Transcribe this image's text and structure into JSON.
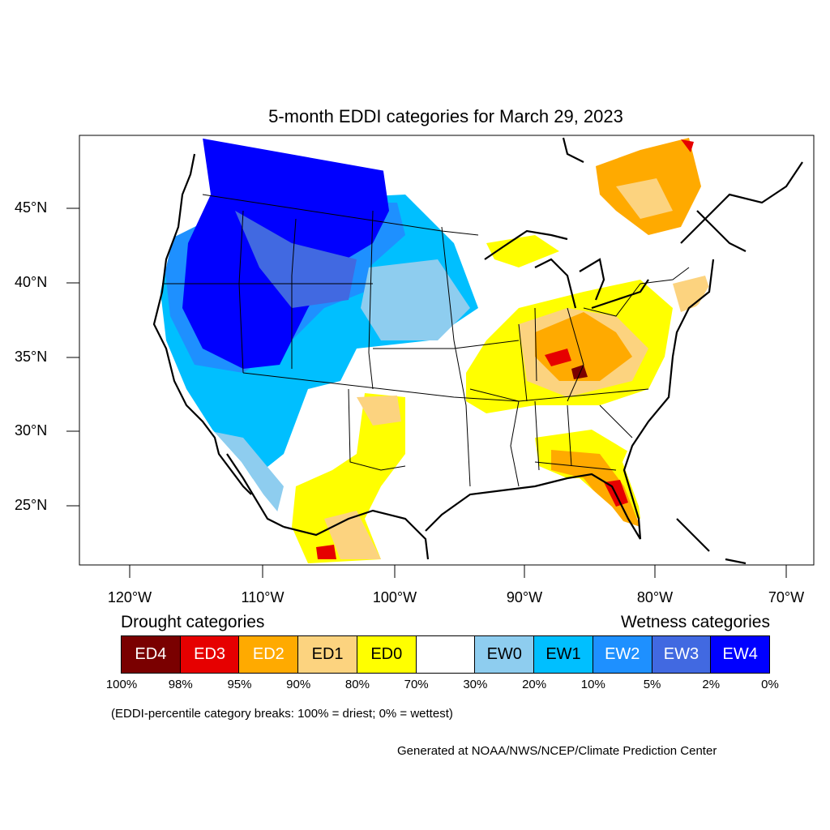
{
  "title": "5-month EDDI categories for March 29, 2023",
  "latitude_labels": [
    "45°N",
    "40°N",
    "35°N",
    "30°N",
    "25°N"
  ],
  "longitude_labels": [
    "120°W",
    "110°W",
    "100°W",
    "90°W",
    "80°W",
    "70°W"
  ],
  "legend": {
    "drought_heading": "Drought categories",
    "wetness_heading": "Wetness categories",
    "categories": [
      {
        "label": "ED4",
        "color": "#7a0000",
        "text_color": "#ffffff"
      },
      {
        "label": "ED3",
        "color": "#e60000",
        "text_color": "#ffffff"
      },
      {
        "label": "ED2",
        "color": "#ffaa00",
        "text_color": "#ffffff"
      },
      {
        "label": "ED1",
        "color": "#fcd37f",
        "text_color": "#000000"
      },
      {
        "label": "ED0",
        "color": "#ffff00",
        "text_color": "#000000"
      },
      {
        "label": "",
        "color": "#ffffff",
        "text_color": "#000000"
      },
      {
        "label": "EW0",
        "color": "#8ecdef",
        "text_color": "#000000"
      },
      {
        "label": "EW1",
        "color": "#00bfff",
        "text_color": "#000000"
      },
      {
        "label": "EW2",
        "color": "#1e90ff",
        "text_color": "#ffffff"
      },
      {
        "label": "EW3",
        "color": "#4169e1",
        "text_color": "#ffffff"
      },
      {
        "label": "EW4",
        "color": "#0000ff",
        "text_color": "#ffffff"
      }
    ],
    "percentiles": [
      "100%",
      "98%",
      "95%",
      "90%",
      "80%",
      "70%",
      "30%",
      "20%",
      "10%",
      "5%",
      "2%",
      "0%"
    ]
  },
  "note": "(EDDI-percentile category breaks: 100% = driest; 0% = wettest)",
  "credit": "Generated at NOAA/NWS/NCEP/Climate Prediction Center"
}
